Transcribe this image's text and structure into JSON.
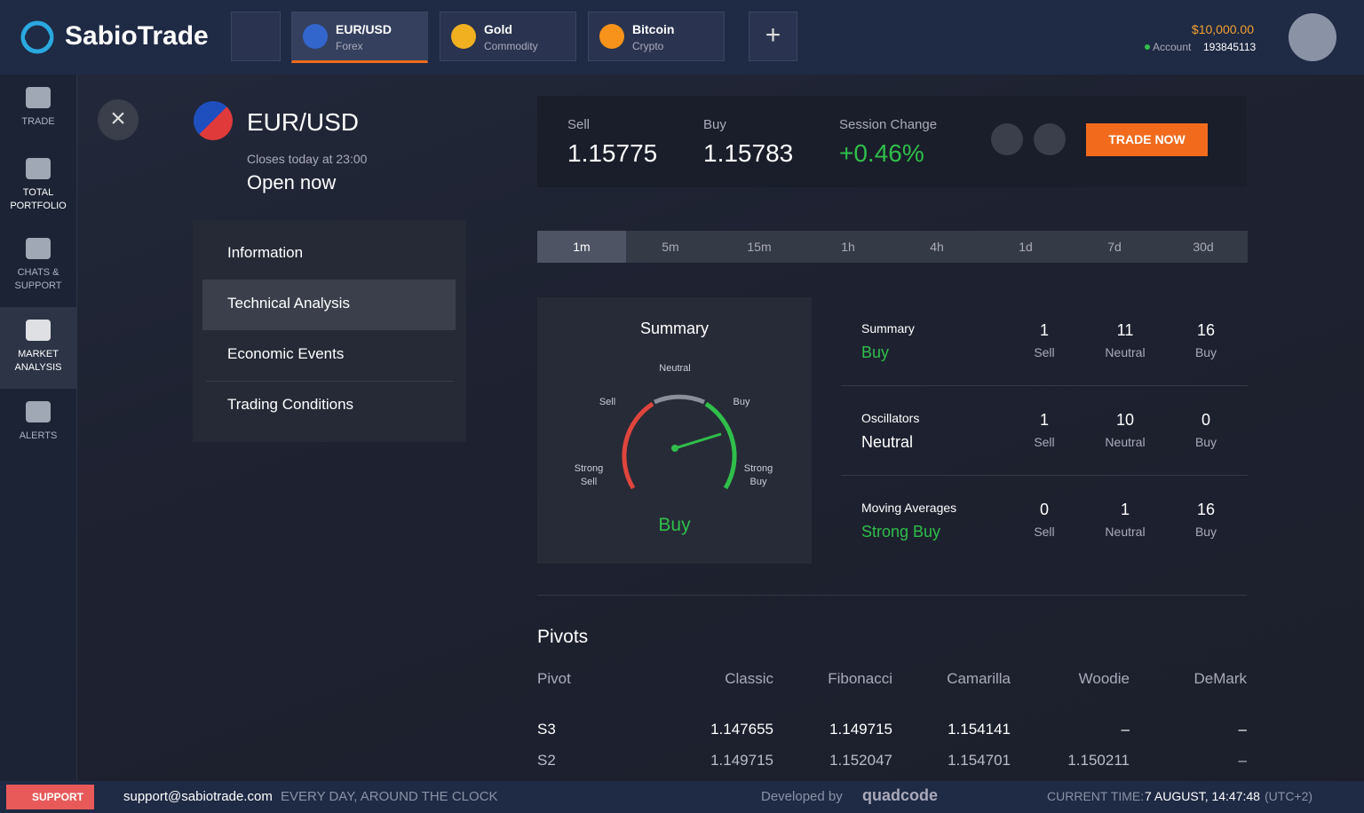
{
  "header": {
    "logo": "SabioTrade",
    "tabs": [
      {
        "title": "EUR/USD",
        "subtitle": "Forex"
      },
      {
        "title": "Gold",
        "subtitle": "Commodity"
      },
      {
        "title": "Bitcoin",
        "subtitle": "Crypto"
      }
    ],
    "balance": "$10,000.00",
    "account_label": "Account",
    "account_number": "193845113"
  },
  "sidebar": [
    "TRADE",
    "TOTAL PORTFOLIO",
    "CHATS & SUPPORT",
    "MARKET ANALYSIS",
    "ALERTS"
  ],
  "asset": {
    "name": "EUR/USD",
    "closes": "Closes today at 23:00",
    "status": "Open now"
  },
  "menu": [
    "Information",
    "Technical Analysis",
    "Economic Events",
    "Trading Conditions"
  ],
  "quote": {
    "sell_label": "Sell",
    "sell": "1.15775",
    "buy_label": "Buy",
    "buy": "1.15783",
    "change_label": "Session Change",
    "change": "+0.46%",
    "button": "TRADE NOW"
  },
  "timeframes": [
    "1m",
    "5m",
    "15m",
    "1h",
    "4h",
    "1d",
    "7d",
    "30d"
  ],
  "gauge": {
    "title": "Summary",
    "neutral": "Neutral",
    "sell": "Sell",
    "buy": "Buy",
    "strong_sell": "Strong Sell",
    "strong_buy": "Strong Buy",
    "result": "Buy"
  },
  "count_labels": [
    "Sell",
    "Neutral",
    "Buy"
  ],
  "summary_rows": [
    {
      "name": "Summary",
      "verdict": "Buy",
      "counts": [
        1,
        11,
        16
      ]
    },
    {
      "name": "Oscillators",
      "verdict": "Neutral",
      "counts": [
        1,
        10,
        0
      ]
    },
    {
      "name": "Moving Averages",
      "verdict": "Strong Buy",
      "counts": [
        0,
        1,
        16
      ]
    }
  ],
  "pivots": {
    "title": "Pivots",
    "columns": [
      "Pivot",
      "Classic",
      "Fibonacci",
      "Camarilla",
      "Woodie",
      "DeMark"
    ],
    "rows": [
      [
        "S3",
        "1.147655",
        "1.149715",
        "1.154141",
        "–",
        "–"
      ],
      [
        "S2",
        "1.149715",
        "1.152047",
        "1.154701",
        "1.150211",
        "–"
      ]
    ]
  },
  "footer": {
    "support": "SUPPORT",
    "email": "support@sabiotrade.com",
    "hours": "EVERY DAY, AROUND THE CLOCK",
    "developed": "Developed by",
    "brand": "quadcode",
    "time_label": "CURRENT TIME:",
    "time": "7 AUGUST, 14:47:48",
    "tz": "(UTC+2)"
  }
}
